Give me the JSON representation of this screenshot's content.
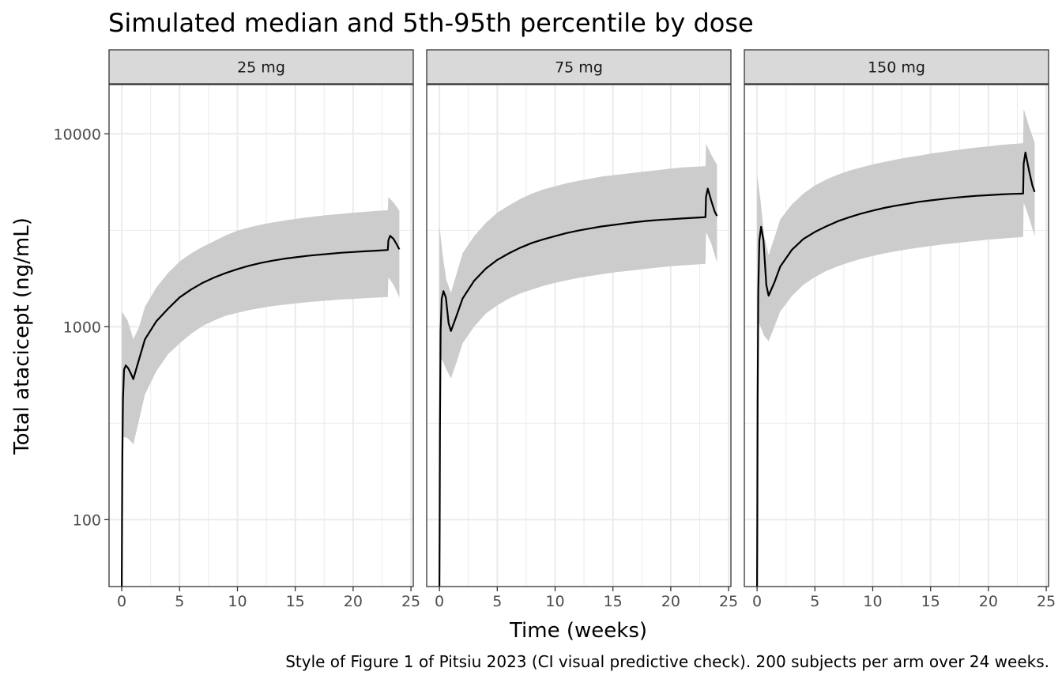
{
  "chart_data": {
    "type": "line",
    "title": "Simulated median and 5th-95th percentile by dose",
    "xlabel": "Time (weeks)",
    "ylabel": "Total atacicept (ng/mL)",
    "caption": "Style of Figure 1 of Pitsiu 2023 (CI visual predictive check). 200 subjects per arm over 24 weeks.",
    "x_scale": "linear",
    "y_scale": "log10",
    "xlim": [
      -1.1,
      25.2
    ],
    "ylim": [
      45,
      18000
    ],
    "x_ticks": [
      0,
      5,
      10,
      15,
      20,
      25
    ],
    "y_ticks": [
      100,
      1000,
      10000
    ],
    "y_tick_labels": [
      "100",
      "1000",
      "10000"
    ],
    "grid": true,
    "band_color": "#cccccc",
    "line_color": "#000000",
    "strip_fill": "#d9d9d9",
    "panels": [
      {
        "label": "25 mg",
        "median": [
          [
            0,
            45
          ],
          [
            0.02,
            90
          ],
          [
            0.05,
            200
          ],
          [
            0.1,
            420
          ],
          [
            0.2,
            600
          ],
          [
            0.35,
            630
          ],
          [
            0.55,
            610
          ],
          [
            0.8,
            570
          ],
          [
            1,
            535
          ],
          [
            1.5,
            680
          ],
          [
            2,
            860
          ],
          [
            3,
            1070
          ],
          [
            4,
            1240
          ],
          [
            5,
            1420
          ],
          [
            6,
            1560
          ],
          [
            7,
            1690
          ],
          [
            8,
            1800
          ],
          [
            9,
            1900
          ],
          [
            10,
            1990
          ],
          [
            11,
            2070
          ],
          [
            12,
            2140
          ],
          [
            13,
            2200
          ],
          [
            14,
            2250
          ],
          [
            15,
            2290
          ],
          [
            16,
            2330
          ],
          [
            17,
            2360
          ],
          [
            18,
            2390
          ],
          [
            19,
            2420
          ],
          [
            20,
            2440
          ],
          [
            21,
            2460
          ],
          [
            22,
            2480
          ],
          [
            23,
            2500
          ],
          [
            23.05,
            2800
          ],
          [
            23.2,
            2960
          ],
          [
            23.5,
            2850
          ],
          [
            23.8,
            2650
          ],
          [
            24,
            2520
          ]
        ],
        "band": [
          {
            "x": 0,
            "lo": 270,
            "hi": 1200
          },
          {
            "x": 0.5,
            "lo": 265,
            "hi": 1080
          },
          {
            "x": 0.9,
            "lo": 250,
            "hi": 900
          },
          {
            "x": 1,
            "lo": 245,
            "hi": 860
          },
          {
            "x": 1.5,
            "lo": 330,
            "hi": 1000
          },
          {
            "x": 2,
            "lo": 445,
            "hi": 1270
          },
          {
            "x": 3,
            "lo": 590,
            "hi": 1600
          },
          {
            "x": 4,
            "lo": 720,
            "hi": 1900
          },
          {
            "x": 5,
            "lo": 820,
            "hi": 2180
          },
          {
            "x": 6,
            "lo": 920,
            "hi": 2400
          },
          {
            "x": 7,
            "lo": 1010,
            "hi": 2600
          },
          {
            "x": 8,
            "lo": 1080,
            "hi": 2780
          },
          {
            "x": 9,
            "lo": 1140,
            "hi": 2980
          },
          {
            "x": 10,
            "lo": 1180,
            "hi": 3150
          },
          {
            "x": 11,
            "lo": 1220,
            "hi": 3270
          },
          {
            "x": 12,
            "lo": 1250,
            "hi": 3380
          },
          {
            "x": 13,
            "lo": 1280,
            "hi": 3470
          },
          {
            "x": 14,
            "lo": 1300,
            "hi": 3550
          },
          {
            "x": 15,
            "lo": 1320,
            "hi": 3620
          },
          {
            "x": 16,
            "lo": 1340,
            "hi": 3690
          },
          {
            "x": 17,
            "lo": 1355,
            "hi": 3750
          },
          {
            "x": 18,
            "lo": 1370,
            "hi": 3800
          },
          {
            "x": 19,
            "lo": 1385,
            "hi": 3850
          },
          {
            "x": 20,
            "lo": 1395,
            "hi": 3900
          },
          {
            "x": 21,
            "lo": 1405,
            "hi": 3940
          },
          {
            "x": 22,
            "lo": 1415,
            "hi": 3980
          },
          {
            "x": 23,
            "lo": 1425,
            "hi": 4020
          },
          {
            "x": 23.05,
            "lo": 1800,
            "hi": 4700
          },
          {
            "x": 23.5,
            "lo": 1650,
            "hi": 4400
          },
          {
            "x": 24,
            "lo": 1420,
            "hi": 4000
          }
        ]
      },
      {
        "label": "75 mg",
        "median": [
          [
            0,
            45
          ],
          [
            0.02,
            90
          ],
          [
            0.05,
            300
          ],
          [
            0.1,
            950
          ],
          [
            0.2,
            1400
          ],
          [
            0.35,
            1530
          ],
          [
            0.55,
            1420
          ],
          [
            0.8,
            1040
          ],
          [
            1,
            950
          ],
          [
            1.5,
            1150
          ],
          [
            2,
            1400
          ],
          [
            3,
            1730
          ],
          [
            4,
            2000
          ],
          [
            5,
            2220
          ],
          [
            6,
            2400
          ],
          [
            7,
            2570
          ],
          [
            8,
            2720
          ],
          [
            9,
            2840
          ],
          [
            10,
            2950
          ],
          [
            11,
            3060
          ],
          [
            12,
            3150
          ],
          [
            13,
            3230
          ],
          [
            14,
            3310
          ],
          [
            15,
            3370
          ],
          [
            16,
            3430
          ],
          [
            17,
            3490
          ],
          [
            18,
            3540
          ],
          [
            19,
            3580
          ],
          [
            20,
            3610
          ],
          [
            21,
            3640
          ],
          [
            22,
            3670
          ],
          [
            23,
            3700
          ],
          [
            23.05,
            4700
          ],
          [
            23.2,
            5200
          ],
          [
            23.5,
            4500
          ],
          [
            23.8,
            3950
          ],
          [
            24,
            3750
          ]
        ],
        "band": [
          {
            "x": 0,
            "lo": 700,
            "hi": 3350
          },
          {
            "x": 0.3,
            "lo": 660,
            "hi": 2300
          },
          {
            "x": 0.6,
            "lo": 600,
            "hi": 1750
          },
          {
            "x": 1,
            "lo": 540,
            "hi": 1500
          },
          {
            "x": 1.5,
            "lo": 660,
            "hi": 1900
          },
          {
            "x": 2,
            "lo": 820,
            "hi": 2400
          },
          {
            "x": 3,
            "lo": 1000,
            "hi": 2950
          },
          {
            "x": 4,
            "lo": 1170,
            "hi": 3450
          },
          {
            "x": 5,
            "lo": 1290,
            "hi": 3900
          },
          {
            "x": 6,
            "lo": 1400,
            "hi": 4250
          },
          {
            "x": 7,
            "lo": 1490,
            "hi": 4600
          },
          {
            "x": 8,
            "lo": 1560,
            "hi": 4900
          },
          {
            "x": 9,
            "lo": 1630,
            "hi": 5150
          },
          {
            "x": 10,
            "lo": 1690,
            "hi": 5350
          },
          {
            "x": 11,
            "lo": 1740,
            "hi": 5550
          },
          {
            "x": 12,
            "lo": 1790,
            "hi": 5700
          },
          {
            "x": 13,
            "lo": 1830,
            "hi": 5850
          },
          {
            "x": 14,
            "lo": 1870,
            "hi": 6000
          },
          {
            "x": 15,
            "lo": 1910,
            "hi": 6100
          },
          {
            "x": 16,
            "lo": 1940,
            "hi": 6200
          },
          {
            "x": 17,
            "lo": 1970,
            "hi": 6300
          },
          {
            "x": 18,
            "lo": 2000,
            "hi": 6400
          },
          {
            "x": 19,
            "lo": 2030,
            "hi": 6500
          },
          {
            "x": 20,
            "lo": 2060,
            "hi": 6600
          },
          {
            "x": 21,
            "lo": 2080,
            "hi": 6700
          },
          {
            "x": 22,
            "lo": 2100,
            "hi": 6750
          },
          {
            "x": 23,
            "lo": 2120,
            "hi": 6800
          },
          {
            "x": 23.05,
            "lo": 3100,
            "hi": 8900
          },
          {
            "x": 23.5,
            "lo": 2700,
            "hi": 7800
          },
          {
            "x": 24,
            "lo": 2150,
            "hi": 6900
          }
        ]
      },
      {
        "label": "150 mg",
        "median": [
          [
            0,
            45
          ],
          [
            0.02,
            100
          ],
          [
            0.05,
            400
          ],
          [
            0.1,
            1500
          ],
          [
            0.2,
            2800
          ],
          [
            0.35,
            3300
          ],
          [
            0.55,
            2800
          ],
          [
            0.8,
            1650
          ],
          [
            1,
            1450
          ],
          [
            1.5,
            1700
          ],
          [
            2,
            2050
          ],
          [
            3,
            2500
          ],
          [
            4,
            2850
          ],
          [
            5,
            3100
          ],
          [
            6,
            3320
          ],
          [
            7,
            3530
          ],
          [
            8,
            3700
          ],
          [
            9,
            3860
          ],
          [
            10,
            4000
          ],
          [
            11,
            4130
          ],
          [
            12,
            4240
          ],
          [
            13,
            4340
          ],
          [
            14,
            4440
          ],
          [
            15,
            4520
          ],
          [
            16,
            4590
          ],
          [
            17,
            4660
          ],
          [
            18,
            4720
          ],
          [
            19,
            4770
          ],
          [
            20,
            4810
          ],
          [
            21,
            4850
          ],
          [
            22,
            4880
          ],
          [
            23,
            4900
          ],
          [
            23.05,
            7000
          ],
          [
            23.2,
            8000
          ],
          [
            23.5,
            6500
          ],
          [
            23.8,
            5400
          ],
          [
            24,
            5000
          ]
        ],
        "band": [
          {
            "x": 0,
            "lo": 1100,
            "hi": 6100
          },
          {
            "x": 0.3,
            "lo": 1000,
            "hi": 4500
          },
          {
            "x": 0.6,
            "lo": 900,
            "hi": 3000
          },
          {
            "x": 1,
            "lo": 840,
            "hi": 2350
          },
          {
            "x": 1.5,
            "lo": 1000,
            "hi": 2900
          },
          {
            "x": 2,
            "lo": 1200,
            "hi": 3600
          },
          {
            "x": 3,
            "lo": 1440,
            "hi": 4300
          },
          {
            "x": 4,
            "lo": 1650,
            "hi": 4900
          },
          {
            "x": 5,
            "lo": 1810,
            "hi": 5400
          },
          {
            "x": 6,
            "lo": 1950,
            "hi": 5800
          },
          {
            "x": 7,
            "lo": 2060,
            "hi": 6150
          },
          {
            "x": 8,
            "lo": 2160,
            "hi": 6450
          },
          {
            "x": 9,
            "lo": 2250,
            "hi": 6700
          },
          {
            "x": 10,
            "lo": 2330,
            "hi": 6950
          },
          {
            "x": 11,
            "lo": 2400,
            "hi": 7150
          },
          {
            "x": 12,
            "lo": 2460,
            "hi": 7350
          },
          {
            "x": 13,
            "lo": 2520,
            "hi": 7550
          },
          {
            "x": 14,
            "lo": 2570,
            "hi": 7700
          },
          {
            "x": 15,
            "lo": 2620,
            "hi": 7900
          },
          {
            "x": 16,
            "lo": 2670,
            "hi": 8050
          },
          {
            "x": 17,
            "lo": 2710,
            "hi": 8200
          },
          {
            "x": 18,
            "lo": 2750,
            "hi": 8350
          },
          {
            "x": 19,
            "lo": 2790,
            "hi": 8500
          },
          {
            "x": 20,
            "lo": 2830,
            "hi": 8600
          },
          {
            "x": 21,
            "lo": 2860,
            "hi": 8750
          },
          {
            "x": 22,
            "lo": 2890,
            "hi": 8850
          },
          {
            "x": 23,
            "lo": 2920,
            "hi": 8950
          },
          {
            "x": 23.05,
            "lo": 4400,
            "hi": 13500
          },
          {
            "x": 23.5,
            "lo": 3700,
            "hi": 11000
          },
          {
            "x": 24,
            "lo": 2950,
            "hi": 9000
          }
        ]
      }
    ]
  }
}
